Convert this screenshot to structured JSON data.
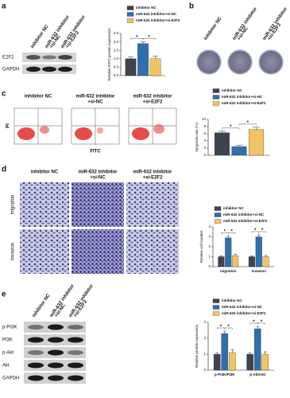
{
  "panel_labels": [
    "a",
    "b",
    "c",
    "d",
    "e"
  ],
  "panel_a": {
    "lanes": [
      [
        "inhibitor NC"
      ],
      [
        "miR-632 inhibitor",
        "+si-NC"
      ],
      [
        "miR-632 inhibitor",
        "+si-E2F2"
      ]
    ],
    "bands": [
      "E2F2",
      "GAPDH"
    ]
  },
  "panel_b": {
    "lanes": [
      [
        "inhibitor NC"
      ],
      [
        "miR-632 inhibitor",
        "+si-NC"
      ],
      [
        "miR-632 inhibitor",
        "+si-E2F2"
      ]
    ]
  },
  "panel_c": {
    "columns": [
      [
        "inhibitor NC"
      ],
      [
        "miR-632 inhibitor",
        "+si-NC"
      ],
      [
        "miR-632 inhibitor",
        "+si-E2F2"
      ]
    ],
    "y_axis": "PI",
    "x_axis": "FITC"
  },
  "panel_d": {
    "columns": [
      [
        "inhibitor NC"
      ],
      [
        "miR-632 inhibitor",
        "+si-NC"
      ],
      [
        "miR-632 inhibitor",
        "+si-E2F2"
      ]
    ],
    "rows": [
      "migration",
      "invasion"
    ]
  },
  "panel_e": {
    "lanes": [
      [
        "inhibitor NC"
      ],
      [
        "miR-632 inhibitor",
        "+si-NC"
      ],
      [
        "miR-632 inhibitor",
        "+si-E2F2"
      ]
    ],
    "bands": [
      "p-PI3K",
      "PI3K",
      "p-Akt",
      "Akt",
      "GAPDH"
    ]
  },
  "chart_data": [
    {
      "type": "bar",
      "y_label": "Relative E2F2 protein expression",
      "categories": [
        null
      ],
      "series": [
        {
          "name": "inhibitor NC",
          "color": "#3d4450",
          "values": [
            1.0
          ],
          "errors": [
            0.1
          ]
        },
        {
          "name": "miR-632 inhibitor+si-NC",
          "color": "#2f6fad",
          "values": [
            1.9
          ],
          "errors": [
            0.12
          ]
        },
        {
          "name": "miR-632 inhibitor+si-E2F2",
          "color": "#f2c463",
          "values": [
            1.0
          ],
          "errors": [
            0.15
          ]
        }
      ],
      "ylim": [
        0,
        2.5
      ],
      "yticks": [
        {
          "value": 0,
          "label": "0.0"
        },
        {
          "value": 0.5,
          "label": "0.5"
        },
        {
          "value": 1,
          "label": "1.0"
        },
        {
          "value": 1.5,
          "label": "1.5"
        },
        {
          "value": 2,
          "label": "2.0"
        },
        {
          "value": 2.5,
          "label": "2.5"
        }
      ],
      "significance": [
        "*",
        "*"
      ]
    },
    {
      "type": "bar",
      "y_label": "Apoptosis rate (%)",
      "categories": [
        null
      ],
      "series": [
        {
          "name": "inhibitor NC",
          "color": "#3d4450",
          "values": [
            6.3
          ],
          "errors": [
            0.4
          ]
        },
        {
          "name": "miR-632 inhibitor+si-NC",
          "color": "#2f6fad",
          "values": [
            2.4
          ],
          "errors": [
            0.4
          ]
        },
        {
          "name": "miR-632 inhibitor+si-E2F2",
          "color": "#f2c463",
          "values": [
            7.2
          ],
          "errors": [
            0.6
          ]
        }
      ],
      "ylim": [
        0,
        10
      ],
      "yticks": [
        0,
        2,
        4,
        6,
        8,
        10
      ],
      "significance": [
        "*",
        "*"
      ]
    },
    {
      "type": "bar",
      "y_label": "Relative cell number",
      "categories": [
        "migration",
        "invasion"
      ],
      "series": [
        {
          "name": "inhibitor NC",
          "color": "#3d4450",
          "values": [
            1.0,
            1.0
          ],
          "errors": [
            0.1,
            0.1
          ]
        },
        {
          "name": "miR-632 inhibitor+si-NC",
          "color": "#2f6fad",
          "values": [
            2.9,
            3.0
          ],
          "errors": [
            0.2,
            0.2
          ]
        },
        {
          "name": "miR-632 inhibitor+si-E2F2",
          "color": "#f2c463",
          "values": [
            1.1,
            1.0
          ],
          "errors": [
            0.15,
            0.12
          ]
        }
      ],
      "ylim": [
        0,
        4
      ],
      "yticks": [
        0,
        1,
        2,
        3,
        4
      ],
      "significance": [
        "*",
        "*",
        "*",
        "*"
      ]
    },
    {
      "type": "bar",
      "y_label": "Relative protein expression",
      "categories": [
        "p-PI3K/PI3K",
        "p-Akt/Akt"
      ],
      "series": [
        {
          "name": "inhibitor NC",
          "color": "#3d4450",
          "values": [
            1.0,
            1.0
          ],
          "errors": [
            0.1,
            0.1
          ]
        },
        {
          "name": "miR-632 inhibitor+si-NC",
          "color": "#2f6fad",
          "values": [
            2.3,
            2.6
          ],
          "errors": [
            0.15,
            0.15
          ]
        },
        {
          "name": "miR-632 inhibitor+si-E2F2",
          "color": "#f2c463",
          "values": [
            1.1,
            1.0
          ],
          "errors": [
            0.2,
            0.15
          ]
        }
      ],
      "ylim": [
        0,
        3
      ],
      "yticks": [
        0,
        1,
        2,
        3
      ],
      "significance": [
        "*",
        "*",
        "*",
        "*"
      ]
    }
  ]
}
